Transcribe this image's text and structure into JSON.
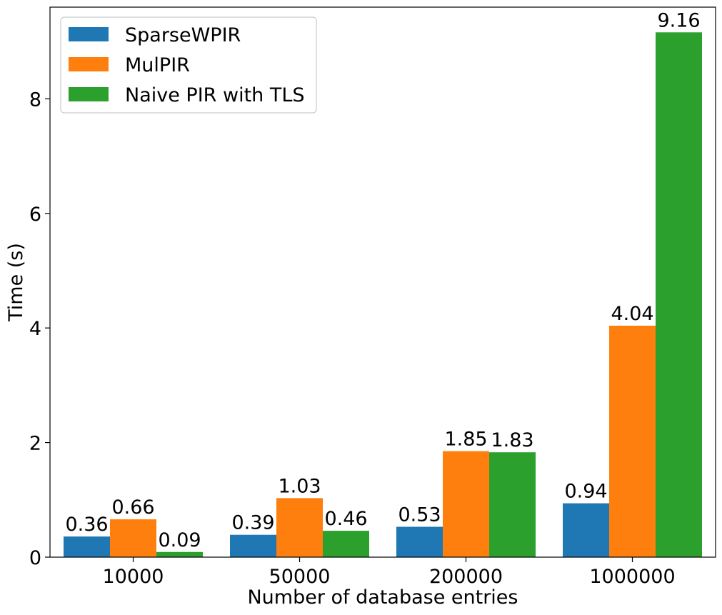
{
  "chart_data": {
    "type": "bar",
    "title": "",
    "xlabel": "Number of database entries",
    "ylabel": "Time (s)",
    "categories": [
      "10000",
      "50000",
      "200000",
      "1000000"
    ],
    "ylim": [
      0,
      9.6
    ],
    "yticks": [
      0,
      2,
      4,
      6,
      8
    ],
    "legend_position": "top-left",
    "grid": false,
    "series": [
      {
        "name": "SparseWPIR",
        "color": "#1f77b4",
        "values": [
          0.36,
          0.39,
          0.53,
          0.94
        ],
        "labels": [
          "0.36",
          "0.39",
          "0.53",
          "0.94"
        ]
      },
      {
        "name": "MulPIR",
        "color": "#ff7f0e",
        "values": [
          0.66,
          1.03,
          1.85,
          4.04
        ],
        "labels": [
          "0.66",
          "1.03",
          "1.85",
          "4.04"
        ]
      },
      {
        "name": "Naive PIR with TLS",
        "color": "#2ca02c",
        "values": [
          0.09,
          0.46,
          1.83,
          9.16
        ],
        "labels": [
          "0.09",
          "0.46",
          "1.83",
          "9.16"
        ]
      }
    ]
  }
}
